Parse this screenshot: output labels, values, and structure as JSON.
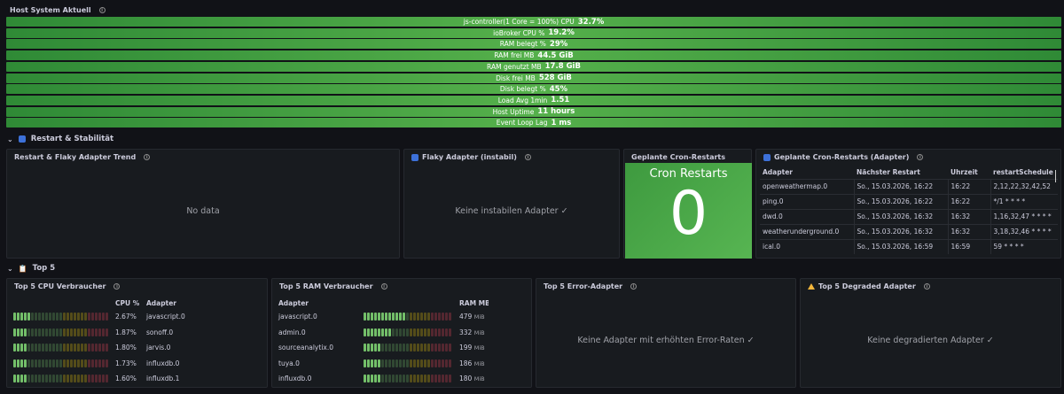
{
  "host_section": {
    "title": "Host System Aktuell",
    "stats": [
      {
        "label": "js-controller(1 Core = 100%) CPU",
        "value": "32.7%"
      },
      {
        "label": "ioBroker CPU %",
        "value": "19.2%"
      },
      {
        "label": "RAM belegt %",
        "value": "29%"
      },
      {
        "label": "RAM frei MB",
        "value": "44.5 GiB"
      },
      {
        "label": "RAM genutzt MB",
        "value": "17.8 GiB"
      },
      {
        "label": "Disk frei MB",
        "value": "528 GiB"
      },
      {
        "label": "Disk belegt %",
        "value": "45%"
      },
      {
        "label": "Load Avg 1min",
        "value": "1.51"
      },
      {
        "label": "Host Uptime",
        "value": "11 hours"
      },
      {
        "label": "Event Loop Lag",
        "value": "1 ms"
      }
    ]
  },
  "restart_row": {
    "title": "Restart & Stabilität",
    "icon": "refresh-icon"
  },
  "trend_panel": {
    "title": "Restart & Flaky Adapter Trend",
    "message": "No data"
  },
  "flaky_panel": {
    "title": "Flaky Adapter (instabil)",
    "message": "Keine instabilen Adapter ✓"
  },
  "cron_stat": {
    "title": "Geplante Cron-Restarts",
    "label": "Cron Restarts",
    "value": "0"
  },
  "cron_table": {
    "title": "Geplante Cron-Restarts (Adapter)",
    "columns": [
      "Adapter",
      "Nächster Restart",
      "Uhrzeit",
      "restartSchedule"
    ],
    "rows": [
      [
        "openweathermap.0",
        "So., 15.03.2026, 16:22",
        "16:22",
        "2,12,22,32,42,52"
      ],
      [
        "ping.0",
        "So., 15.03.2026, 16:22",
        "16:22",
        "*/1 * * * *"
      ],
      [
        "dwd.0",
        "So., 15.03.2026, 16:32",
        "16:32",
        "1,16,32,47 * * * *"
      ],
      [
        "weatherunderground.0",
        "So., 15.03.2026, 16:32",
        "16:32",
        "3,18,32,46 * * * *"
      ],
      [
        "ical.0",
        "So., 15.03.2026, 16:59",
        "16:59",
        "59 * * * *"
      ]
    ]
  },
  "top5_row": {
    "title": "Top 5",
    "icon": "clipboard-icon"
  },
  "cpu_panel": {
    "title": "Top 5 CPU Verbraucher",
    "columns": [
      "CPU %",
      "Adapter"
    ],
    "rows": [
      {
        "value": "2.67%",
        "adapter": "javascript.0",
        "level": 0.2
      },
      {
        "value": "1.87%",
        "adapter": "sonoff.0",
        "level": 0.15
      },
      {
        "value": "1.80%",
        "adapter": "jarvis.0",
        "level": 0.15
      },
      {
        "value": "1.73%",
        "adapter": "influxdb.0",
        "level": 0.14
      },
      {
        "value": "1.60%",
        "adapter": "influxdb.1",
        "level": 0.13
      }
    ]
  },
  "ram_panel": {
    "title": "Top 5 RAM Verbraucher",
    "columns": [
      "Adapter",
      "RAM MB"
    ],
    "unit": "MiB",
    "rows": [
      {
        "adapter": "javascript.0",
        "value": "479",
        "level": 0.479
      },
      {
        "adapter": "admin.0",
        "value": "332",
        "level": 0.332
      },
      {
        "adapter": "sourceanalytix.0",
        "value": "199",
        "level": 0.199
      },
      {
        "adapter": "tuya.0",
        "value": "186",
        "level": 0.186
      },
      {
        "adapter": "influxdb.0",
        "value": "180",
        "level": 0.18
      }
    ]
  },
  "error_panel": {
    "title": "Top 5 Error-Adapter",
    "message": "Keine Adapter mit erhöhten Error-Raten ✓"
  },
  "degraded_panel": {
    "title": "Top 5 Degraded Adapter",
    "message": "Keine degradierten Adapter ✓"
  },
  "colors": {
    "stat_green": "#4da348",
    "bar_green": "#73bf69",
    "bar_yellow": "#f2cc0c",
    "bar_red": "#f2495c"
  }
}
